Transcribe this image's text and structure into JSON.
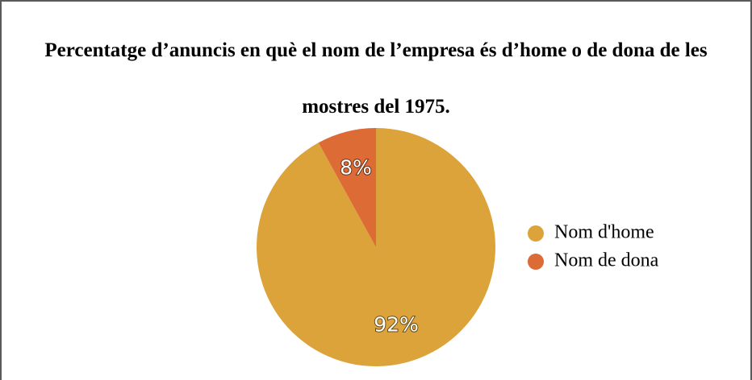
{
  "chart_data": {
    "type": "pie",
    "title": "Percentatge d’anuncis en què el nom de l’empresa és d’home o de dona de les mostres del 1975.",
    "categories": [
      "Nom d'home",
      "Nom de dona"
    ],
    "values": [
      92,
      8
    ],
    "value_labels": [
      "92%",
      "8%"
    ],
    "colors": [
      "#dca33a",
      "#dd6b36"
    ],
    "legend": "right"
  }
}
